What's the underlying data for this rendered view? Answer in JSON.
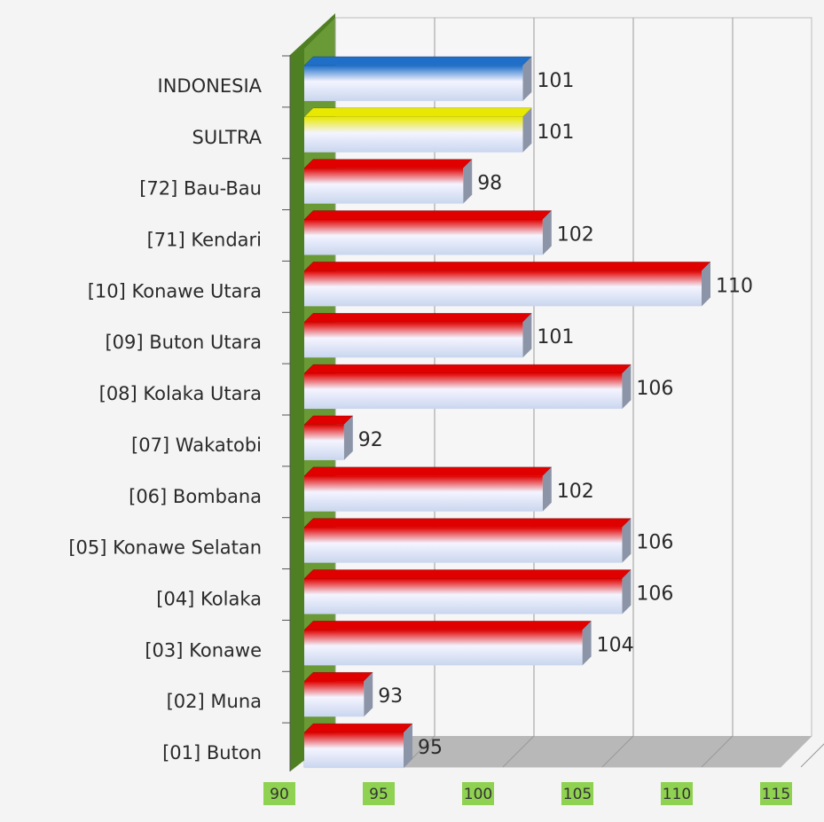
{
  "chart_data": {
    "type": "bar",
    "orientation": "horizontal",
    "categories": [
      "INDONESIA",
      "SULTRA",
      "[72] Bau-Bau",
      "[71] Kendari",
      "[10] Konawe Utara",
      "[09] Buton Utara",
      "[08] Kolaka Utara",
      "[07] Wakatobi",
      "[06] Bombana",
      "[05] Konawe Selatan",
      "[04] Kolaka",
      "[03] Konawe",
      "[02] Muna",
      "[01] Buton"
    ],
    "values": [
      101,
      101,
      98,
      102,
      110,
      101,
      106,
      92,
      102,
      106,
      106,
      104,
      93,
      95
    ],
    "colors": [
      "#1f6fc8",
      "#e8e800",
      "#e00000",
      "#e00000",
      "#e00000",
      "#e00000",
      "#e00000",
      "#e00000",
      "#e00000",
      "#e00000",
      "#e00000",
      "#e00000",
      "#e00000",
      "#e00000"
    ],
    "xlim": [
      90,
      115
    ],
    "xticks": [
      90,
      95,
      100,
      105,
      110,
      115
    ],
    "grid": true
  }
}
